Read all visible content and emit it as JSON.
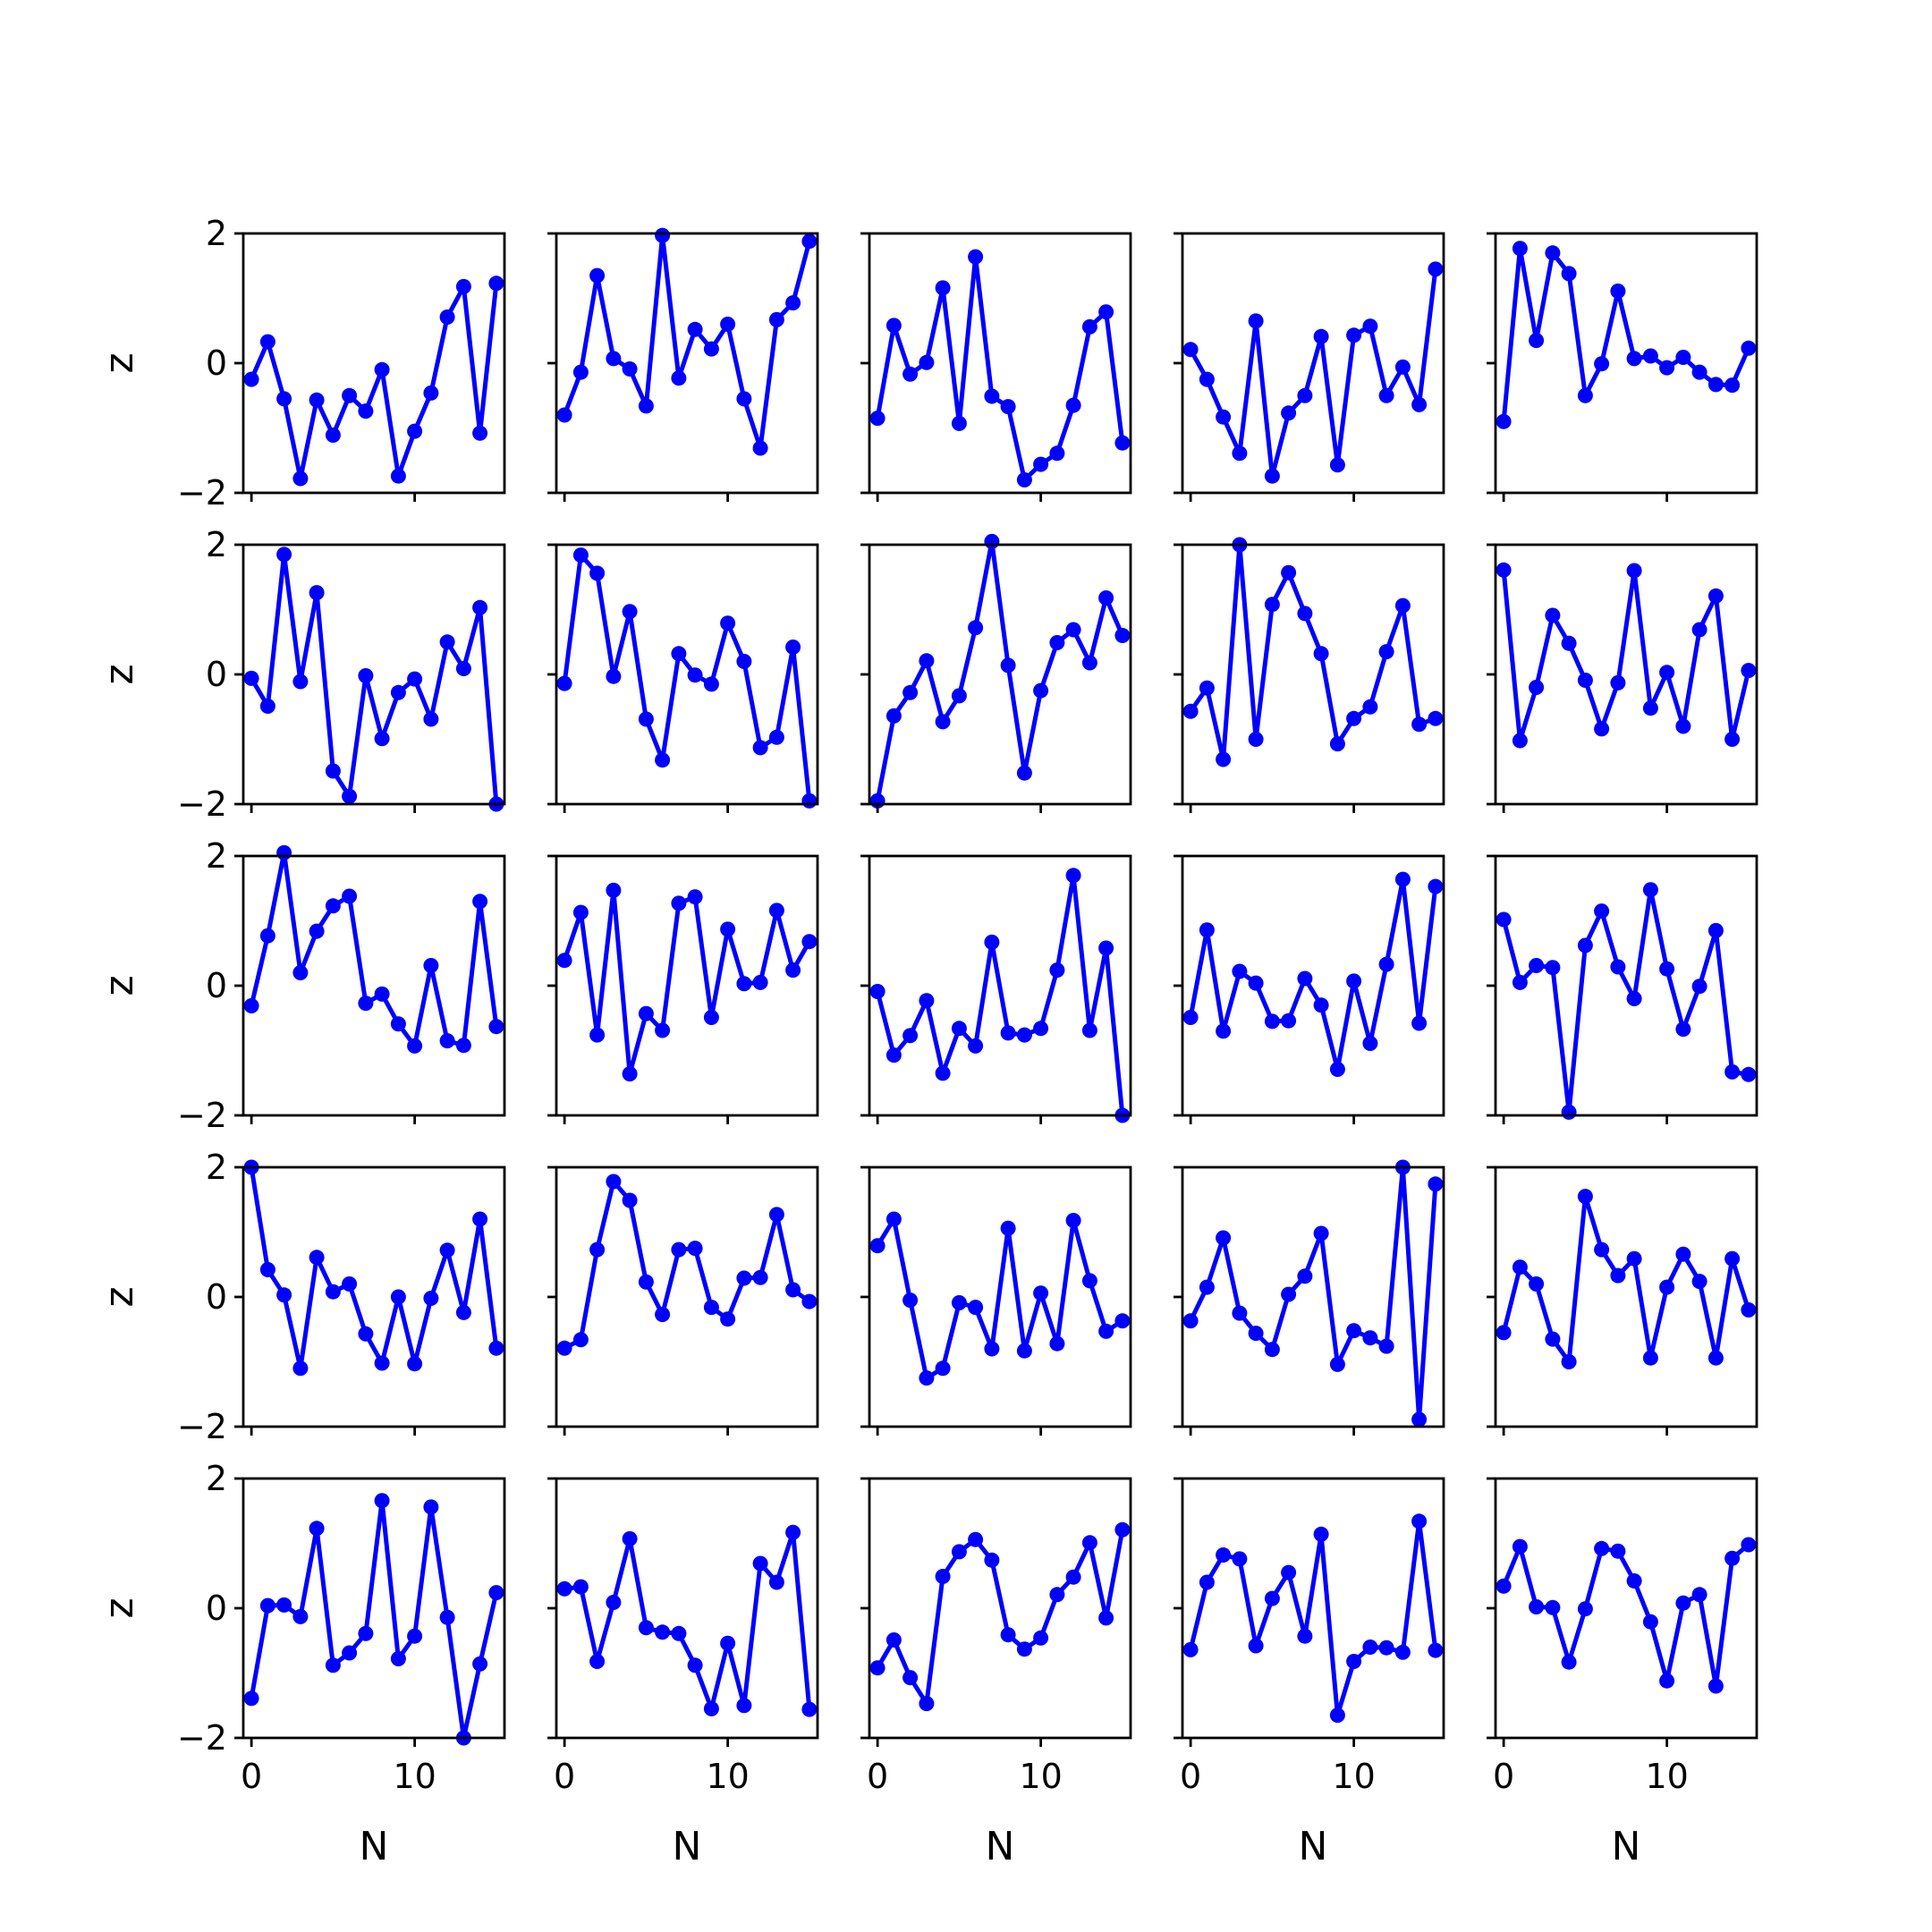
{
  "chart_data": {
    "type": "line",
    "layout": "5x5 grid of subplots sharing x and y axes",
    "x": [
      0,
      1,
      2,
      3,
      4,
      5,
      6,
      7,
      8,
      9,
      10,
      11,
      12,
      13,
      14,
      15
    ],
    "xlabel": "N",
    "ylabel": "z",
    "xlim": [
      -0.5,
      15.5
    ],
    "ylim": [
      -2,
      2
    ],
    "xticks": [
      0,
      10
    ],
    "yticks": [
      -2,
      0,
      2
    ],
    "xtick_labels": [
      "0",
      "10"
    ],
    "ytick_labels": [
      "−2",
      "0",
      "2"
    ],
    "color": "#0000ff",
    "marker": "circle",
    "grid": false,
    "panels": [
      [
        [
          -0.25,
          0.33,
          -0.55,
          -1.78,
          -0.57,
          -1.11,
          -0.5,
          -0.74,
          -0.1,
          -1.74,
          -1.05,
          -0.46,
          0.71,
          1.18,
          -1.08,
          1.23
        ],
        [
          -0.8,
          -0.14,
          1.35,
          0.07,
          -0.09,
          -0.66,
          1.97,
          -0.23,
          0.52,
          0.22,
          0.6,
          -0.55,
          -1.31,
          0.67,
          0.93,
          1.88
        ],
        [
          -0.85,
          0.58,
          -0.17,
          0.01,
          1.16,
          -0.93,
          1.64,
          -0.51,
          -0.67,
          -1.8,
          -1.56,
          -1.39,
          -0.65,
          0.56,
          0.79,
          -1.23
        ],
        [
          0.21,
          -0.25,
          -0.83,
          -1.39,
          0.65,
          -1.74,
          -0.77,
          -0.5,
          0.41,
          -1.57,
          0.43,
          0.57,
          -0.5,
          -0.06,
          -0.64,
          1.45
        ]
      ],
      [
        [
          -0.06,
          -0.49,
          1.85,
          -0.11,
          1.26,
          -1.49,
          -1.88,
          -0.02,
          -0.99,
          -0.28,
          -0.07,
          -0.69,
          0.5,
          0.09,
          1.03,
          -2.0
        ],
        [
          -0.14,
          1.84,
          1.56,
          -0.03,
          0.97,
          -0.69,
          -1.32,
          0.32,
          -0.01,
          -0.15,
          0.79,
          0.2,
          -1.13,
          -0.97,
          0.42,
          -1.95
        ],
        [
          -1.95,
          -0.64,
          -0.28,
          0.21,
          -0.73,
          -0.33,
          0.72,
          2.05,
          0.14,
          -1.52,
          -0.25,
          0.49,
          0.69,
          0.18,
          1.18,
          0.6
        ],
        [
          -0.57,
          -0.21,
          -1.31,
          2.0,
          -1.0,
          1.08,
          1.57,
          0.94,
          0.32,
          -1.07,
          -0.68,
          -0.5,
          0.35,
          1.06,
          -0.77,
          -0.68
        ]
      ],
      [
        [
          -0.31,
          0.77,
          2.05,
          0.2,
          0.84,
          1.23,
          1.38,
          -0.27,
          -0.13,
          -0.59,
          -0.93,
          0.31,
          -0.85,
          -0.92,
          1.3,
          -0.63
        ],
        [
          0.39,
          1.13,
          -0.76,
          1.47,
          -1.36,
          -0.43,
          -0.69,
          1.27,
          1.37,
          -0.49,
          0.87,
          0.03,
          0.05,
          1.16,
          0.24,
          0.68
        ],
        [
          -0.09,
          -1.07,
          -0.77,
          -0.23,
          -1.35,
          -0.66,
          -0.93,
          0.67,
          -0.73,
          -0.76,
          -0.66,
          0.24,
          1.7,
          -0.69,
          0.58,
          -2.0
        ],
        [
          -0.49,
          0.86,
          -0.7,
          0.22,
          0.04,
          -0.55,
          -0.54,
          0.11,
          -0.3,
          -1.29,
          0.07,
          -0.89,
          0.33,
          1.64,
          -0.58,
          1.53
        ]
      ],
      [
        [
          2.0,
          0.42,
          0.03,
          -1.1,
          0.61,
          0.08,
          0.2,
          -0.57,
          -1.02,
          0.0,
          -1.03,
          -0.02,
          0.72,
          -0.24,
          1.2,
          -0.79
        ],
        [
          -0.79,
          -0.66,
          0.73,
          1.78,
          1.49,
          0.23,
          -0.27,
          0.73,
          0.75,
          -0.16,
          -0.34,
          0.29,
          0.3,
          1.27,
          0.11,
          -0.07
        ],
        [
          0.79,
          1.2,
          -0.05,
          -1.25,
          -1.1,
          -0.09,
          -0.16,
          -0.8,
          1.06,
          -0.83,
          0.06,
          -0.72,
          1.18,
          0.25,
          -0.53,
          -0.37
        ],
        [
          -0.37,
          0.15,
          0.91,
          -0.25,
          -0.56,
          -0.81,
          0.04,
          0.32,
          0.98,
          -1.04,
          -0.52,
          -0.63,
          -0.76,
          2.0,
          -1.89,
          1.74
        ]
      ],
      [
        [
          -1.39,
          0.04,
          0.05,
          -0.13,
          1.23,
          -0.88,
          -0.69,
          -0.39,
          1.66,
          -0.78,
          -0.43,
          1.56,
          -0.14,
          -2.0,
          -0.86,
          0.24
        ],
        [
          0.3,
          0.33,
          -0.82,
          0.09,
          1.07,
          -0.3,
          -0.37,
          -0.39,
          -0.88,
          -1.55,
          -0.54,
          -1.5,
          0.69,
          0.4,
          1.17,
          -1.56
        ],
        [
          -0.92,
          -0.49,
          -1.07,
          -1.47,
          0.49,
          0.87,
          1.06,
          0.74,
          -0.41,
          -0.63,
          -0.46,
          0.21,
          0.48,
          1.01,
          -0.15,
          1.21
        ],
        [
          -0.64,
          0.4,
          0.82,
          0.76,
          -0.58,
          0.15,
          0.55,
          -0.43,
          1.14,
          -1.65,
          -0.82,
          -0.6,
          -0.61,
          -0.68,
          1.34,
          -0.65
        ]
      ]
    ],
    "last_column": [
      [
        -0.9,
        1.77,
        0.35,
        1.7,
        1.38,
        -0.5,
        -0.01,
        1.11,
        0.07,
        0.11,
        -0.07,
        0.09,
        -0.14,
        -0.33,
        -0.34,
        0.23
      ],
      [
        1.61,
        -1.02,
        -0.2,
        0.91,
        0.48,
        -0.09,
        -0.84,
        -0.13,
        1.6,
        -0.52,
        0.03,
        -0.8,
        0.69,
        1.21,
        -1.0,
        0.06
      ],
      [
        1.02,
        0.05,
        0.31,
        0.28,
        -1.95,
        0.62,
        1.15,
        0.29,
        -0.2,
        1.48,
        0.26,
        -0.67,
        -0.01,
        0.85,
        -1.33,
        -1.37
      ],
      [
        -0.55,
        0.46,
        0.2,
        -0.65,
        -1.0,
        1.55,
        0.73,
        0.33,
        0.59,
        -0.94,
        0.15,
        0.66,
        0.24,
        -0.94,
        0.59,
        -0.2
      ],
      [
        0.34,
        0.95,
        0.02,
        0.01,
        -0.83,
        -0.01,
        0.92,
        0.88,
        0.42,
        -0.21,
        -1.12,
        0.08,
        0.21,
        -1.2,
        0.77,
        0.98
      ]
    ]
  }
}
